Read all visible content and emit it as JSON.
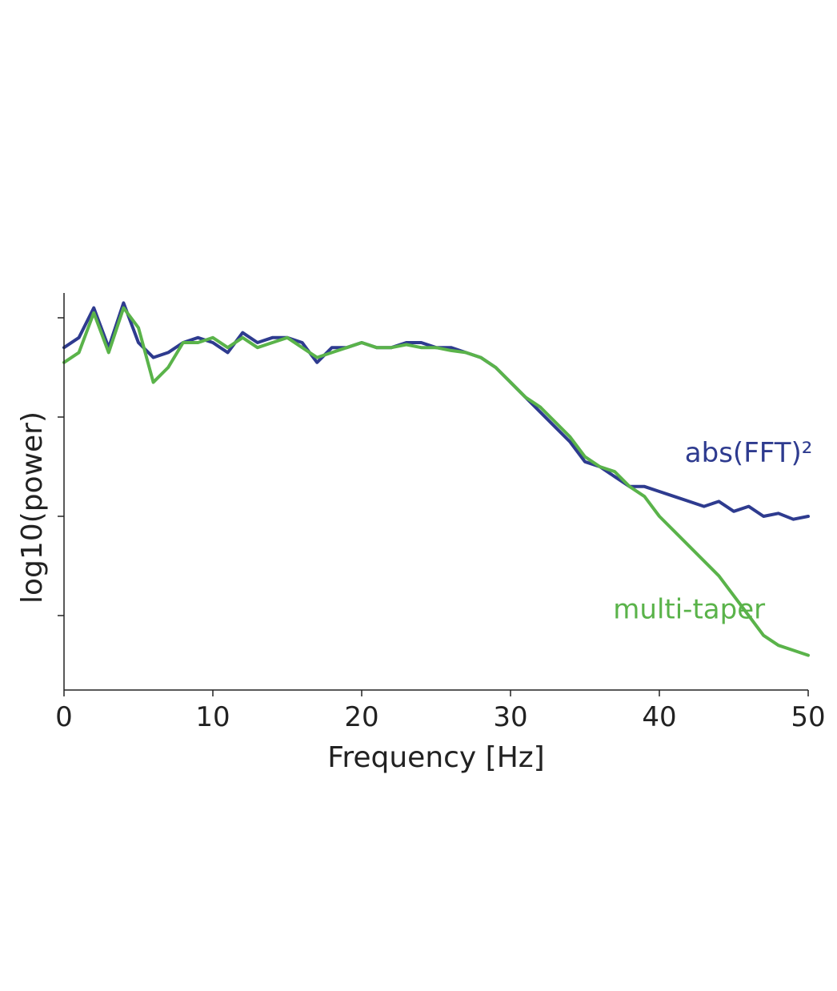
{
  "chart_data": {
    "type": "line",
    "xlabel": "Frequency [Hz]",
    "ylabel": "log10(power)",
    "xlim": [
      0,
      50
    ],
    "ylim": [
      0,
      4
    ],
    "x_ticks": [
      "0",
      "10",
      "20",
      "30",
      "40",
      "50"
    ],
    "y_ticks": [
      0.75,
      1.75,
      2.75,
      3.75
    ],
    "grid": false,
    "legend": "inline-labels",
    "x": [
      0,
      1,
      2,
      3,
      4,
      5,
      6,
      7,
      8,
      9,
      10,
      11,
      12,
      13,
      14,
      15,
      16,
      17,
      18,
      19,
      20,
      21,
      22,
      23,
      24,
      25,
      26,
      27,
      28,
      29,
      30,
      31,
      32,
      33,
      34,
      35,
      36,
      37,
      38,
      39,
      40,
      41,
      42,
      43,
      44,
      45,
      46,
      47,
      48,
      49,
      50
    ],
    "series": [
      {
        "name": "abs(FFT)²",
        "color": "#2e3b8f",
        "values": [
          3.45,
          3.55,
          3.85,
          3.45,
          3.9,
          3.5,
          3.35,
          3.4,
          3.5,
          3.55,
          3.5,
          3.4,
          3.6,
          3.5,
          3.55,
          3.55,
          3.5,
          3.3,
          3.45,
          3.45,
          3.5,
          3.45,
          3.45,
          3.5,
          3.5,
          3.45,
          3.45,
          3.4,
          3.35,
          3.25,
          3.1,
          2.95,
          2.8,
          2.65,
          2.5,
          2.3,
          2.25,
          2.15,
          2.05,
          2.05,
          2.0,
          1.95,
          1.9,
          1.85,
          1.9,
          1.8,
          1.85,
          1.75,
          1.78,
          1.72,
          1.75
        ]
      },
      {
        "name": "multi-taper",
        "color": "#5ab34a",
        "values": [
          3.3,
          3.4,
          3.8,
          3.4,
          3.85,
          3.65,
          3.1,
          3.25,
          3.5,
          3.5,
          3.55,
          3.45,
          3.55,
          3.45,
          3.5,
          3.55,
          3.45,
          3.35,
          3.4,
          3.45,
          3.5,
          3.45,
          3.45,
          3.48,
          3.45,
          3.45,
          3.42,
          3.4,
          3.35,
          3.25,
          3.1,
          2.95,
          2.85,
          2.7,
          2.55,
          2.35,
          2.25,
          2.2,
          2.05,
          1.95,
          1.75,
          1.6,
          1.45,
          1.3,
          1.15,
          0.95,
          0.75,
          0.55,
          0.45,
          0.4,
          0.35
        ]
      }
    ],
    "annotations": [
      {
        "text": "abs(FFT)²",
        "series": 0,
        "x": 46,
        "y": 2.3
      },
      {
        "text": "multi-taper",
        "series": 1,
        "x": 42,
        "y": 0.72
      }
    ]
  }
}
